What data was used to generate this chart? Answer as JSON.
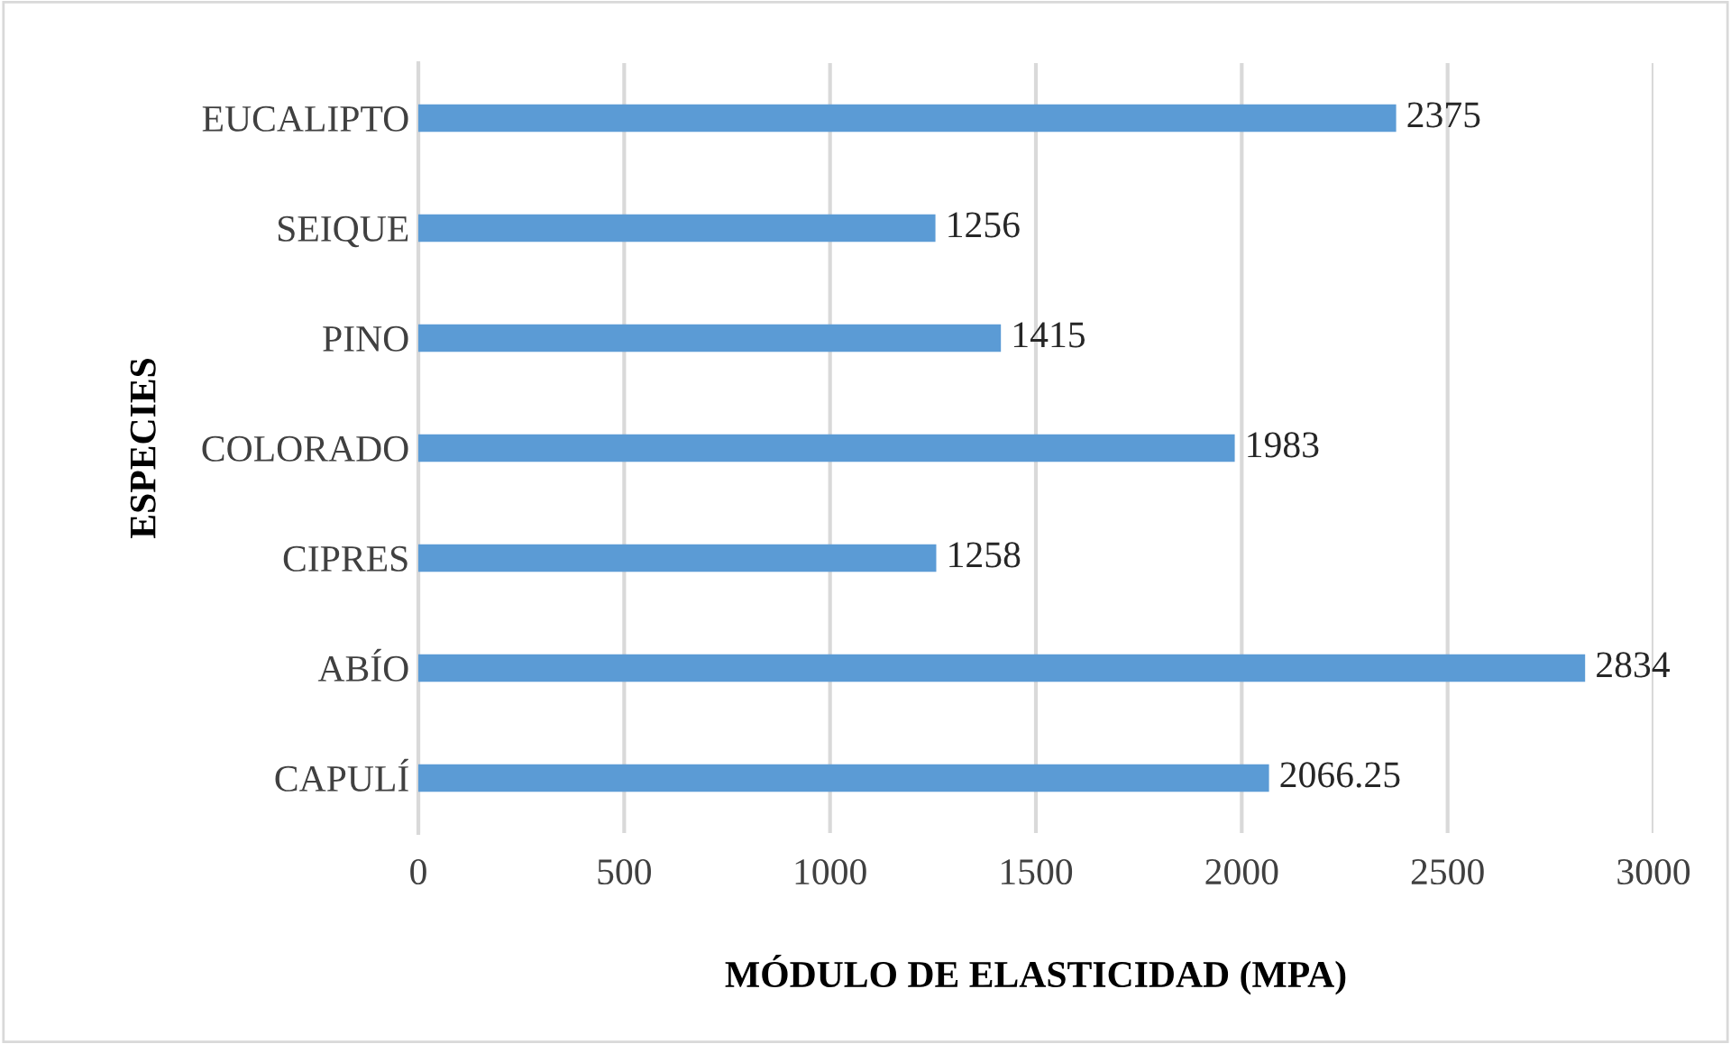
{
  "chart_data": {
    "type": "bar",
    "orientation": "horizontal",
    "xlabel": "MÓDULO DE ELASTICIDAD (MPA)",
    "ylabel": "ESPECIES",
    "categories": [
      "EUCALIPTO",
      "SEIQUE",
      "PINO",
      "COLORADO",
      "CIPRES",
      "ABÍO",
      "CAPULÍ"
    ],
    "values": [
      2375,
      1256,
      1415,
      1983,
      1258,
      2834,
      2066.25
    ],
    "color": "#5b9bd5",
    "xlim": [
      0,
      3000
    ],
    "xticks": [
      0,
      500,
      1000,
      1500,
      2000,
      2500,
      3000
    ],
    "grid": "x",
    "data_labels": true,
    "legend": false
  }
}
